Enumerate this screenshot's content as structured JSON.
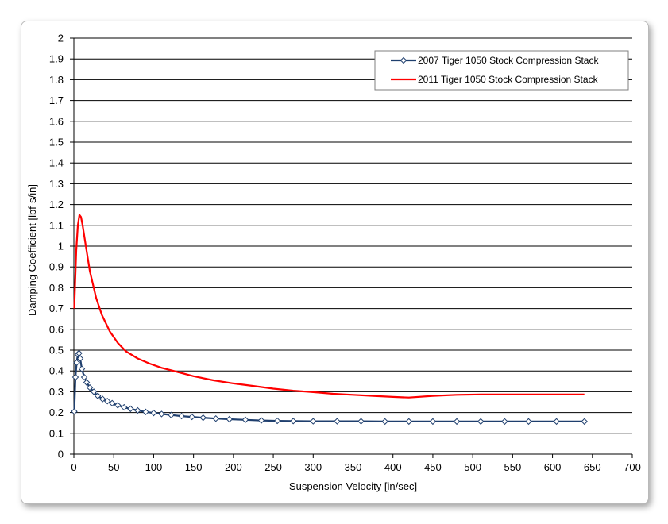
{
  "chart_data": {
    "type": "line",
    "xlabel": "Suspension Velocity [in/sec]",
    "ylabel": "Damping Coefficient [lbf-s/in]",
    "xlim": [
      0,
      700
    ],
    "ylim": [
      0,
      2
    ],
    "xticks": [
      0,
      50,
      100,
      150,
      200,
      250,
      300,
      350,
      400,
      450,
      500,
      550,
      600,
      650,
      700
    ],
    "yticks": [
      0,
      0.1,
      0.2,
      0.3,
      0.4,
      0.5,
      0.6,
      0.7,
      0.8,
      0.9,
      1,
      1.1,
      1.2,
      1.3,
      1.4,
      1.5,
      1.6,
      1.7,
      1.8,
      1.9,
      2
    ],
    "grid": "horizontal",
    "legend_position": "top-right",
    "series": [
      {
        "name": "2007 Tiger 1050 Stock Compression Stack",
        "color": "#1f3f6e",
        "marker": "diamond",
        "x": [
          0.5,
          2,
          3.5,
          5,
          6.5,
          8,
          10,
          13,
          16,
          20,
          25,
          30,
          36,
          42,
          48,
          55,
          63,
          71,
          80,
          90,
          100,
          110,
          122,
          135,
          148,
          162,
          178,
          195,
          215,
          235,
          255,
          275,
          300,
          330,
          360,
          390,
          420,
          450,
          480,
          510,
          540,
          570,
          605,
          640
        ],
        "y": [
          0.205,
          0.37,
          0.44,
          0.48,
          0.485,
          0.46,
          0.41,
          0.37,
          0.345,
          0.32,
          0.3,
          0.28,
          0.265,
          0.255,
          0.245,
          0.235,
          0.225,
          0.218,
          0.21,
          0.203,
          0.198,
          0.193,
          0.188,
          0.183,
          0.179,
          0.175,
          0.171,
          0.168,
          0.165,
          0.162,
          0.16,
          0.159,
          0.158,
          0.158,
          0.158,
          0.157,
          0.157,
          0.157,
          0.157,
          0.157,
          0.157,
          0.157,
          0.157,
          0.157
        ]
      },
      {
        "name": "2011 Tiger 1050 Stock Compression Stack",
        "color": "#ff0000",
        "x": [
          0.5,
          3,
          5,
          7,
          9,
          11,
          15,
          20,
          28,
          35,
          45,
          55,
          65,
          80,
          95,
          110,
          130,
          150,
          175,
          200,
          225,
          250,
          275,
          300,
          325,
          350,
          375,
          400,
          420,
          450,
          480,
          510,
          540,
          570,
          600,
          640
        ],
        "y": [
          0.7,
          0.98,
          1.1,
          1.15,
          1.14,
          1.1,
          1.0,
          0.88,
          0.75,
          0.67,
          0.59,
          0.535,
          0.495,
          0.46,
          0.435,
          0.415,
          0.395,
          0.375,
          0.355,
          0.34,
          0.328,
          0.315,
          0.305,
          0.298,
          0.29,
          0.285,
          0.28,
          0.275,
          0.272,
          0.28,
          0.285,
          0.287,
          0.287,
          0.287,
          0.287,
          0.287
        ]
      }
    ]
  }
}
